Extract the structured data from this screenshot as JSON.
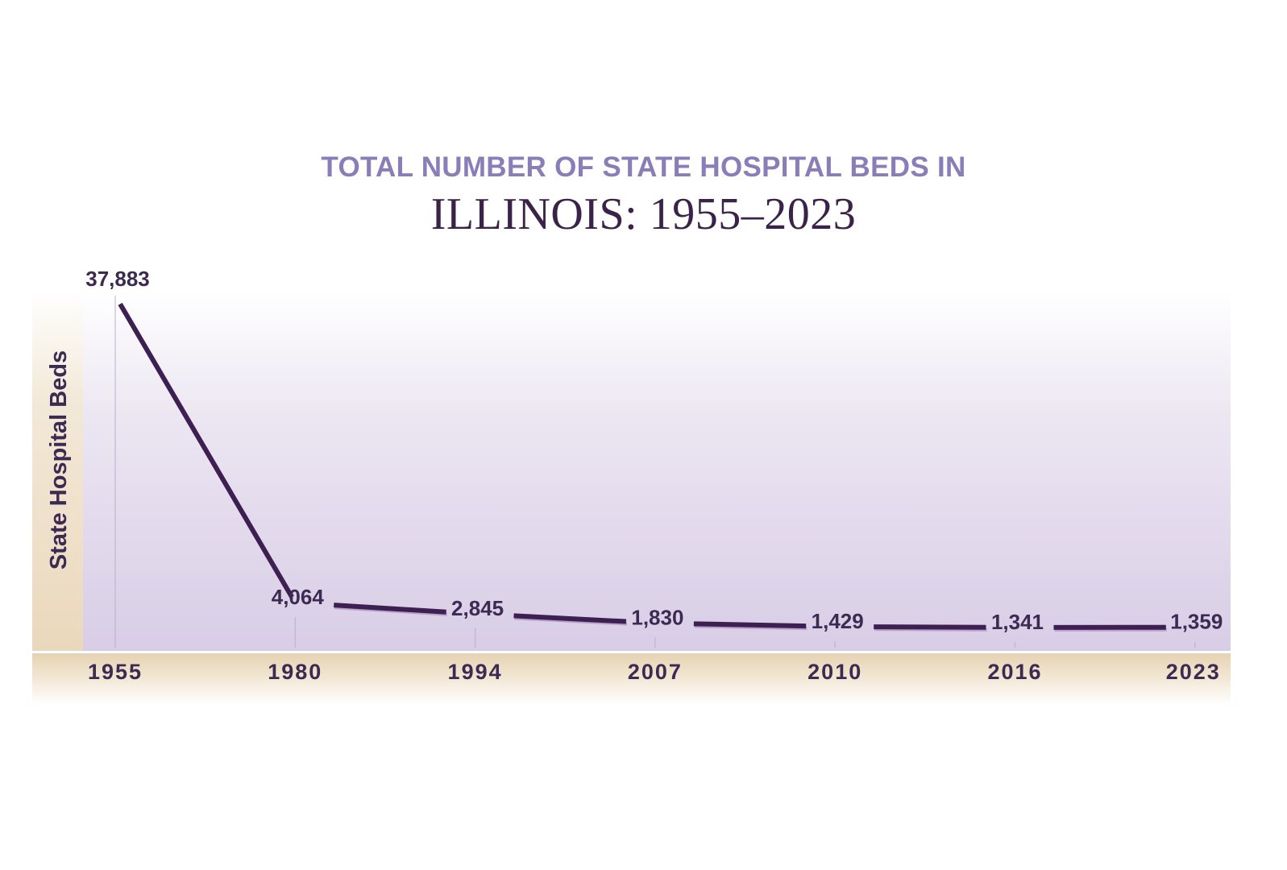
{
  "chart_data": {
    "type": "line",
    "title": "TOTAL NUMBER OF STATE HOSPITAL BEDS IN",
    "subtitle": "ILLINOIS: 1955–2023",
    "xlabel": "",
    "ylabel": "State Hospital Beds",
    "categories": [
      "1955",
      "1980",
      "1994",
      "2007",
      "2010",
      "2016",
      "2023"
    ],
    "series": [
      {
        "values": [
          37883,
          4064,
          2845,
          1830,
          1429,
          1341,
          1359
        ]
      }
    ],
    "data_labels": [
      "37,883",
      "4,064",
      "2,845",
      "1,830",
      "1,429",
      "1,341",
      "1,359"
    ],
    "ylim": [
      0,
      37883
    ],
    "grid": false,
    "colors": {
      "line": "#3d1f52",
      "title_accent": "#8a7db8",
      "text": "#3d2a52",
      "plot_top": "#ffffff",
      "plot_bottom": "#d9cfe6",
      "axis_band": "#ecdcc2"
    }
  }
}
